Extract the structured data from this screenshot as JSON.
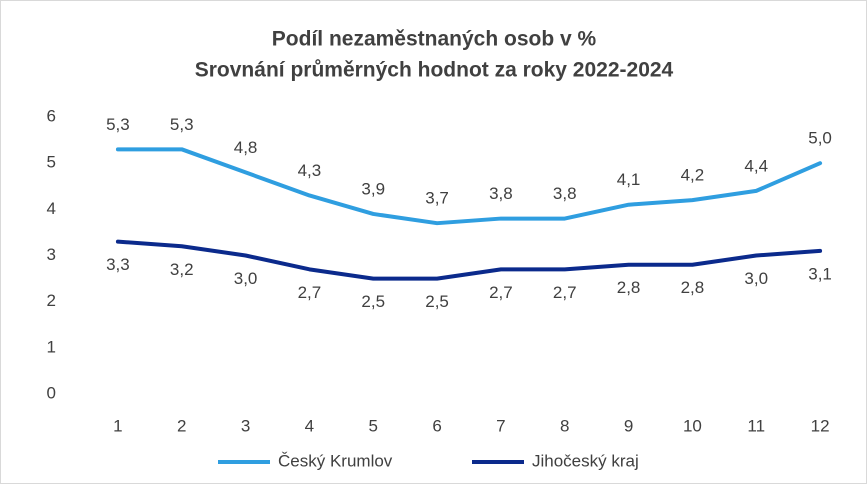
{
  "chart_data": {
    "type": "line",
    "title": "Podíl nezaměstnaných osob v %",
    "subtitle": "Srovnání průměrných hodnot za roky 2022-2024",
    "categories": [
      "1",
      "2",
      "3",
      "4",
      "5",
      "6",
      "7",
      "8",
      "9",
      "10",
      "11",
      "12"
    ],
    "series": [
      {
        "name": "Český Krumlov",
        "color": "#2f9ee0",
        "values": [
          5.3,
          5.3,
          4.8,
          4.3,
          3.9,
          3.7,
          3.8,
          3.8,
          4.1,
          4.2,
          4.4,
          5.0
        ],
        "value_labels": [
          "5,3",
          "5,3",
          "4,8",
          "4,3",
          "3,9",
          "3,7",
          "3,8",
          "3,8",
          "4,1",
          "4,2",
          "4,4",
          "5,0"
        ]
      },
      {
        "name": "Jihočeský kraj",
        "color": "#0b2a8c",
        "values": [
          3.3,
          3.2,
          3.0,
          2.7,
          2.5,
          2.5,
          2.7,
          2.7,
          2.8,
          2.8,
          3.0,
          3.1
        ],
        "value_labels": [
          "3,3",
          "3,2",
          "3,0",
          "2,7",
          "2,5",
          "2,5",
          "2,7",
          "2,7",
          "2,8",
          "2,8",
          "3,0",
          "3,1"
        ]
      }
    ],
    "ylim": [
      0,
      6
    ],
    "yticks": [
      0,
      1,
      2,
      3,
      4,
      5,
      6
    ],
    "grid": false,
    "legend": "bottom"
  }
}
